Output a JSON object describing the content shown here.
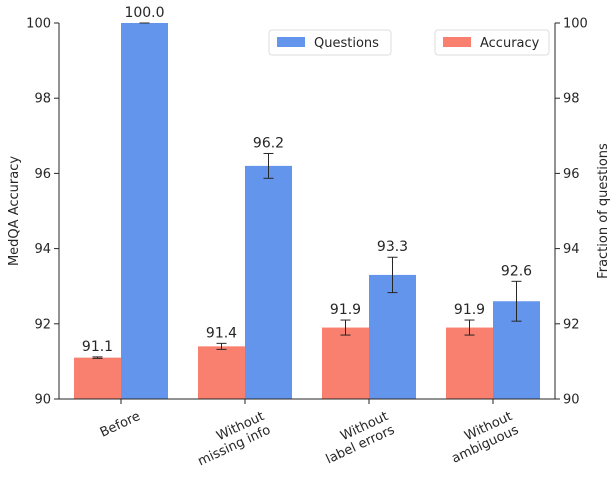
{
  "chart_data": {
    "type": "bar",
    "categories": [
      [
        "Before"
      ],
      [
        "Without",
        "missing info"
      ],
      [
        "Without",
        "label errors"
      ],
      [
        "Without",
        "ambiguous"
      ]
    ],
    "series": [
      {
        "name": "Accuracy",
        "axis": "left",
        "color": "#f97f6f",
        "values": [
          91.1,
          91.4,
          91.9,
          91.9
        ],
        "labels": [
          "91.1",
          "91.4",
          "91.9",
          "91.9"
        ],
        "error": [
          0.02,
          0.08,
          0.2,
          0.2
        ]
      },
      {
        "name": "Questions",
        "axis": "right",
        "color": "#6495ed",
        "values": [
          100.0,
          96.2,
          93.3,
          92.6
        ],
        "labels": [
          "100.0",
          "96.2",
          "93.3",
          "92.6"
        ],
        "error": [
          0.0,
          0.33,
          0.47,
          0.53
        ]
      }
    ],
    "ylabel_left": "MedQA Accuracy",
    "ylabel_right": "Fraction of questions",
    "ylim": [
      90,
      100
    ],
    "yticks": [
      "90",
      "92",
      "94",
      "96",
      "98",
      "100"
    ],
    "grid": false,
    "legend": [
      {
        "name": "Questions",
        "placement": "top-center"
      },
      {
        "name": "Accuracy",
        "placement": "top-right"
      }
    ]
  }
}
